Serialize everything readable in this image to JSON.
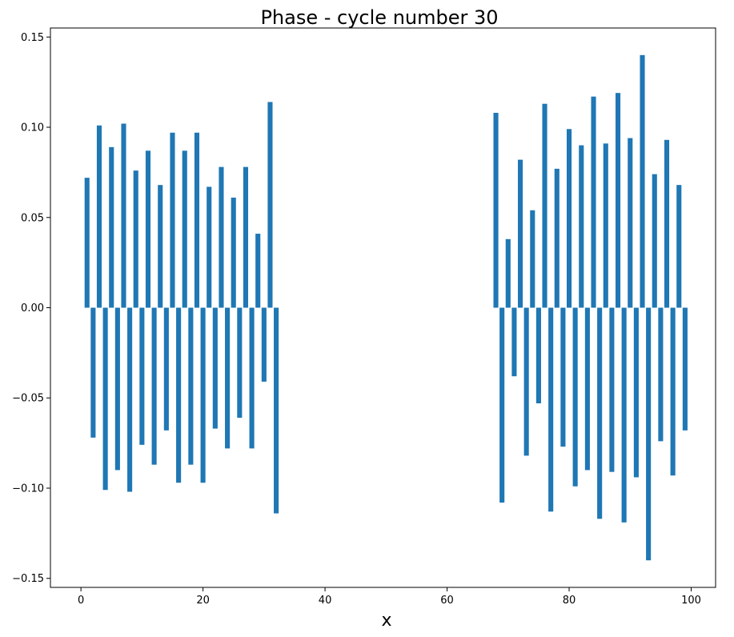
{
  "chart_data": {
    "type": "bar",
    "title": "Phase - cycle number 30",
    "xlabel": "x",
    "ylabel": "",
    "xlim": [
      -5,
      104
    ],
    "ylim": [
      -0.155,
      0.155
    ],
    "xticks": [
      0,
      20,
      40,
      60,
      80,
      100
    ],
    "xtick_labels": [
      "0",
      "20",
      "40",
      "60",
      "80",
      "100"
    ],
    "yticks": [
      -0.15,
      -0.1,
      -0.05,
      0.0,
      0.05,
      0.1,
      0.15
    ],
    "ytick_labels": [
      "−0.15",
      "−0.10",
      "−0.05",
      "0.00",
      "0.05",
      "0.10",
      "0.15"
    ],
    "grid": false,
    "bar_color": "#1f77b4",
    "bar_width": 0.8,
    "x": [
      1,
      2,
      3,
      4,
      5,
      6,
      7,
      8,
      9,
      10,
      11,
      12,
      13,
      14,
      15,
      16,
      17,
      18,
      19,
      20,
      21,
      22,
      23,
      24,
      25,
      26,
      27,
      28,
      29,
      30,
      31,
      32,
      68,
      69,
      70,
      71,
      72,
      73,
      74,
      75,
      76,
      77,
      78,
      79,
      80,
      81,
      82,
      83,
      84,
      85,
      86,
      87,
      88,
      89,
      90,
      91,
      92,
      93,
      94,
      95,
      96,
      97,
      98,
      99
    ],
    "values": [
      0.072,
      -0.072,
      0.101,
      -0.101,
      0.089,
      -0.09,
      0.102,
      -0.102,
      0.076,
      -0.076,
      0.087,
      -0.087,
      0.068,
      -0.068,
      0.097,
      -0.097,
      0.087,
      -0.087,
      0.097,
      -0.097,
      0.067,
      -0.067,
      0.078,
      -0.078,
      0.061,
      -0.061,
      0.078,
      -0.078,
      0.041,
      -0.041,
      0.114,
      -0.114,
      0.108,
      -0.108,
      0.038,
      -0.038,
      0.082,
      -0.082,
      0.054,
      -0.053,
      0.113,
      -0.113,
      0.077,
      -0.077,
      0.099,
      -0.099,
      0.09,
      -0.09,
      0.117,
      -0.117,
      0.091,
      -0.091,
      0.119,
      -0.119,
      0.094,
      -0.094,
      0.14,
      -0.14,
      0.074,
      -0.074,
      0.093,
      -0.093,
      0.068,
      -0.068
    ]
  }
}
